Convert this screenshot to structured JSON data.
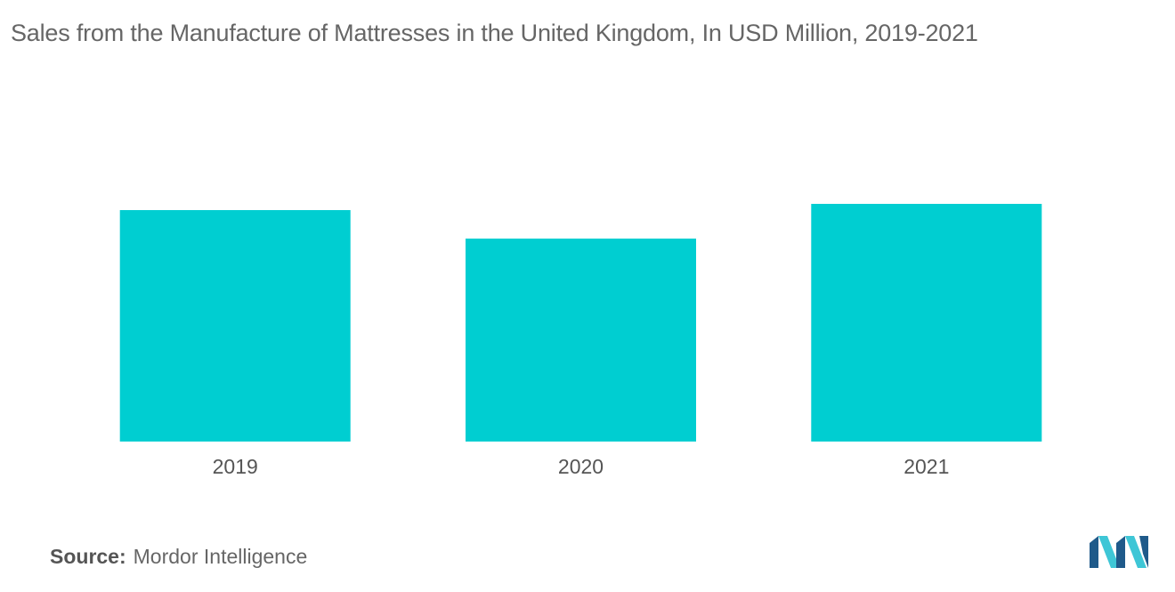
{
  "title": "Sales from the Manufacture of Mattresses in the United Kingdom, In USD Million, 2019-2021",
  "source": {
    "label": "Source:",
    "text": "Mordor Intelligence"
  },
  "logo": {
    "icon": "mordor-intelligence-logo-icon",
    "color_dark": "#1f5a8a",
    "color_light": "#3ec6d6"
  },
  "colors": {
    "bar": "#00ced1"
  },
  "chart_data": {
    "type": "bar",
    "title": "Sales from the Manufacture of Mattresses in the United Kingdom, In USD Million, 2019-2021",
    "categories": [
      "2019",
      "2020",
      "2021"
    ],
    "values": [
      260,
      228,
      267
    ],
    "xlabel": "",
    "ylabel": "",
    "ylim": [
      0,
      300
    ],
    "grid": false,
    "legend": "none"
  }
}
